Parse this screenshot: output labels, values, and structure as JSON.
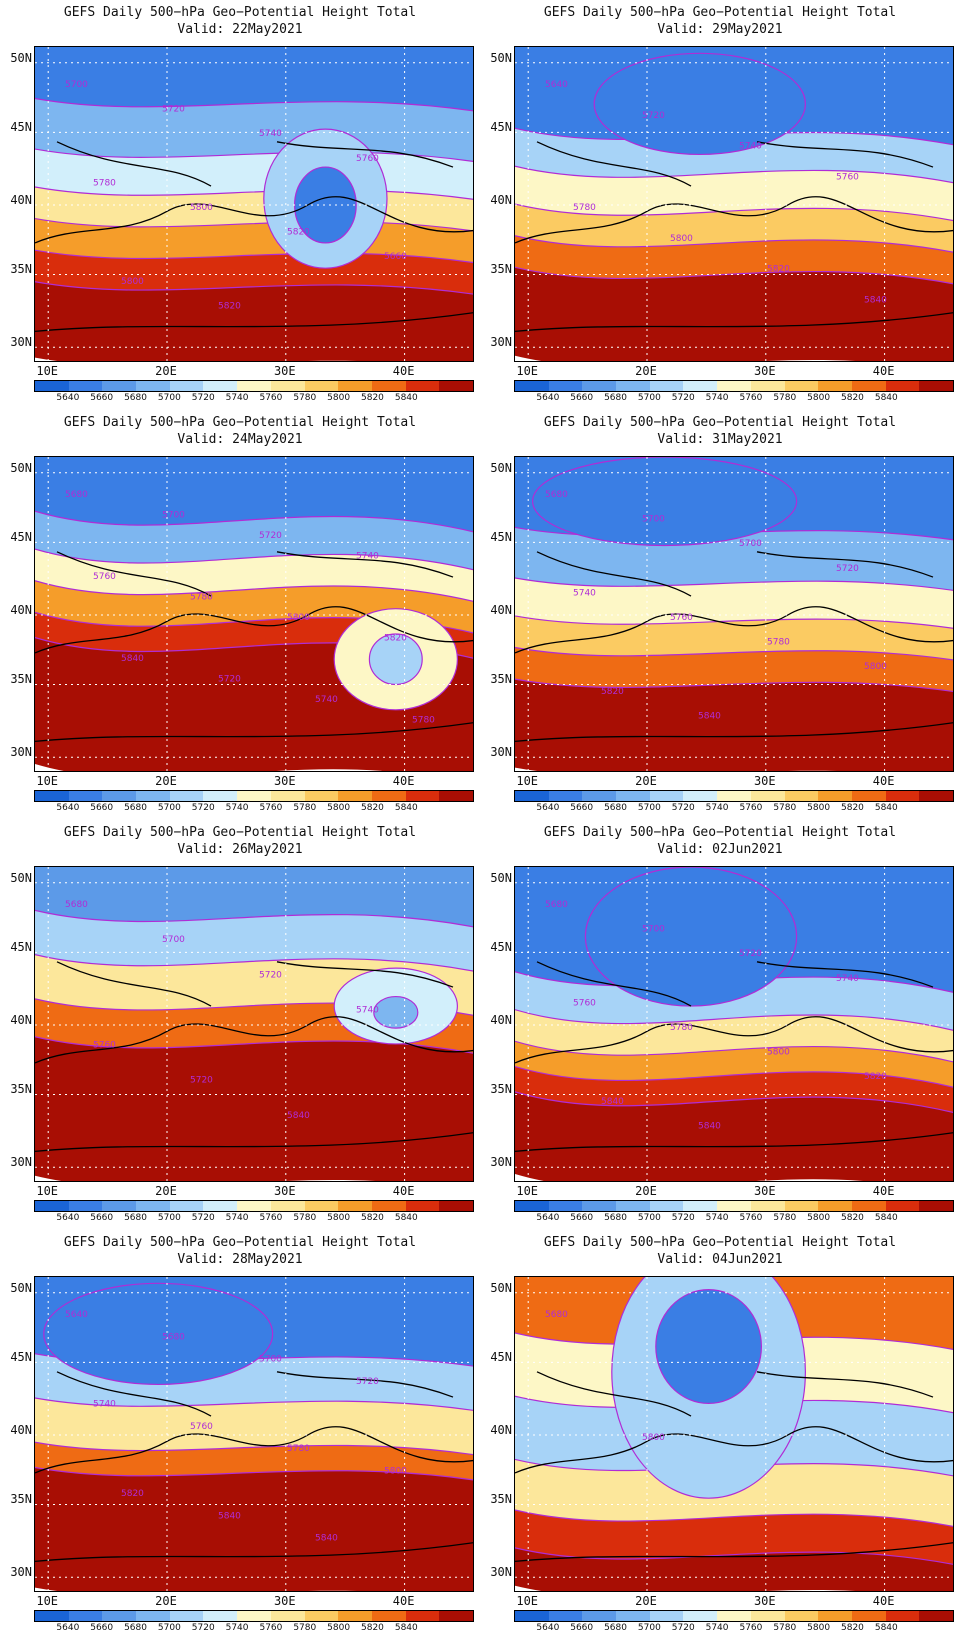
{
  "title": "GEFS Daily 500−hPa Geo−Potential Height Total",
  "lat_labels": [
    "50N",
    "45N",
    "40N",
    "35N",
    "30N"
  ],
  "lon_labels": [
    "10E",
    "20E",
    "30E",
    "40E"
  ],
  "colorbar": {
    "colors": [
      "#1a64d6",
      "#3a7ee4",
      "#5c9ae8",
      "#7db6f0",
      "#a7d3f7",
      "#d2effb",
      "#fdf7c6",
      "#fce79b",
      "#fbcb62",
      "#f59d2a",
      "#ef6b14",
      "#d92d0c",
      "#a80e04"
    ],
    "labels": [
      "5640",
      "5660",
      "5680",
      "5700",
      "5720",
      "5740",
      "5760",
      "5780",
      "5800",
      "5820",
      "5840"
    ]
  },
  "panels": [
    {
      "valid": "Valid: 22May2021",
      "contour_labels": [
        "5700",
        "5720",
        "5740",
        "5760",
        "5780",
        "5800",
        "5820",
        "5660",
        "5800",
        "5820"
      ]
    },
    {
      "valid": "Valid: 29May2021",
      "contour_labels": [
        "5640",
        "5720",
        "5740",
        "5760",
        "5780",
        "5800",
        "5820",
        "5840"
      ]
    },
    {
      "valid": "Valid: 24May2021",
      "contour_labels": [
        "5680",
        "5700",
        "5720",
        "5740",
        "5760",
        "5780",
        "5800",
        "5820",
        "5840",
        "5720",
        "5740",
        "5780"
      ]
    },
    {
      "valid": "Valid: 31May2021",
      "contour_labels": [
        "5680",
        "5700",
        "5700",
        "5720",
        "5740",
        "5760",
        "5780",
        "5800",
        "5820",
        "5840"
      ]
    },
    {
      "valid": "Valid: 26May2021",
      "contour_labels": [
        "5680",
        "5700",
        "5720",
        "5740",
        "5760",
        "5720",
        "5840"
      ]
    },
    {
      "valid": "Valid: 02Jun2021",
      "contour_labels": [
        "5680",
        "5700",
        "5720",
        "5740",
        "5760",
        "5780",
        "5800",
        "5820",
        "5840",
        "5840"
      ]
    },
    {
      "valid": "Valid: 28May2021",
      "contour_labels": [
        "5640",
        "5680",
        "5700",
        "5720",
        "5740",
        "5760",
        "5780",
        "5800",
        "5820",
        "5840",
        "5840"
      ]
    },
    {
      "valid": "Valid: 04Jun2021",
      "contour_labels": [
        "5680",
        "5800"
      ]
    }
  ]
}
